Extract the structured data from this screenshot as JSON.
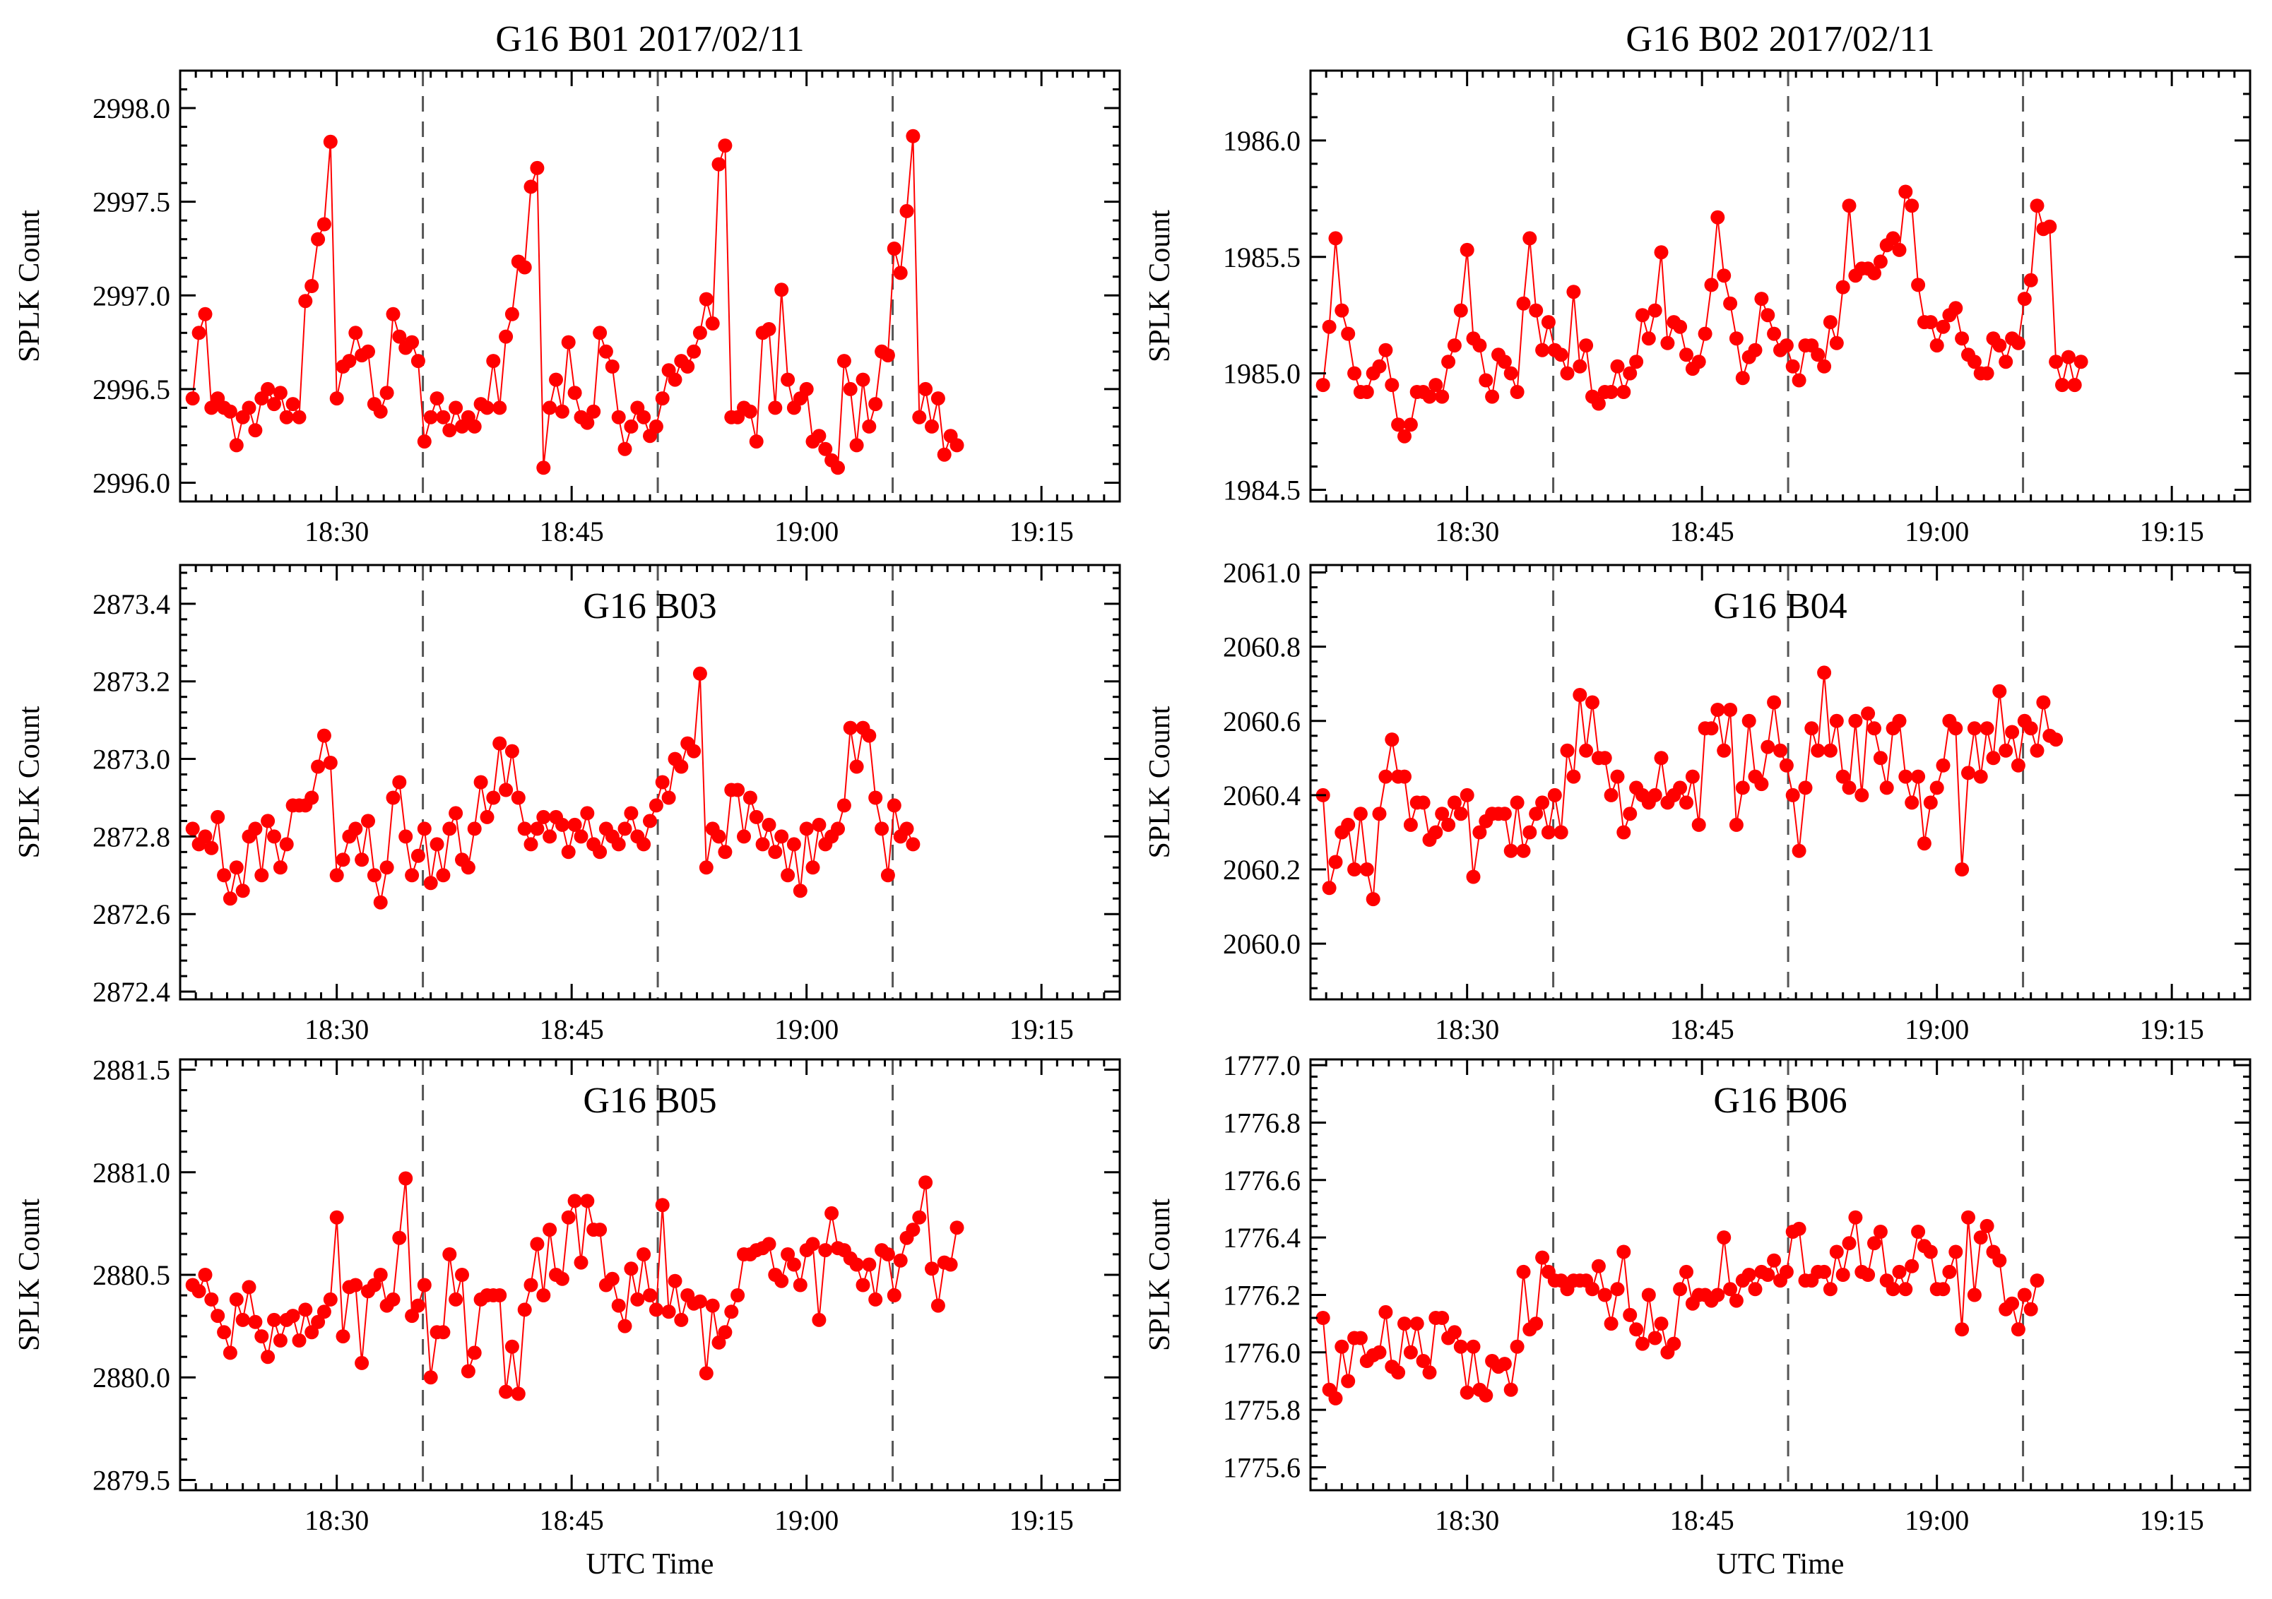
{
  "figure": {
    "series_color": "#ff0000",
    "marker_color": "#ff0000",
    "vline_color": "#555555",
    "xticks": [
      {
        "t": 30,
        "label": "18:30"
      },
      {
        "t": 45,
        "label": "18:45"
      },
      {
        "t": 60,
        "label": "19:00"
      },
      {
        "t": 75,
        "label": "19:15"
      }
    ],
    "xrange_minutes_after_18h": [
      20,
      80
    ],
    "vlines_minutes_after_18h": [
      35.5,
      50.5,
      65.5
    ],
    "time_offsets_minutes": [
      0.0,
      0.4,
      0.8,
      1.2,
      1.6,
      2.0,
      2.4,
      2.8,
      3.2,
      3.6,
      4.0,
      4.4,
      4.8,
      5.2,
      5.6,
      6.0,
      6.4,
      6.8,
      7.2,
      7.6,
      8.0,
      8.4,
      8.8,
      9.2,
      9.6,
      10.0,
      10.4,
      10.8,
      11.2,
      11.6,
      12.0,
      12.4,
      12.8,
      13.2,
      13.6,
      14.0,
      14.4,
      14.8,
      15.2,
      15.6,
      16.0,
      16.4,
      16.8,
      17.2,
      17.6,
      18.0,
      18.4,
      18.8,
      19.2,
      19.6,
      20.0,
      20.4,
      20.8,
      21.2,
      21.6,
      22.0,
      22.4,
      22.8,
      23.2,
      23.6,
      24.0,
      24.4,
      24.8,
      25.2,
      25.6,
      26.0,
      26.4,
      26.8,
      27.2,
      27.6,
      28.0,
      28.4,
      28.8,
      29.2,
      29.6,
      30.0,
      30.4,
      30.8,
      31.2,
      31.6,
      32.0,
      32.4,
      32.8,
      33.2,
      33.6,
      34.0,
      34.4,
      34.8,
      35.2,
      35.6,
      36.0,
      36.4,
      36.8,
      37.2,
      37.6,
      38.0,
      38.4,
      38.8,
      39.2,
      39.6,
      40.0,
      40.4,
      40.8,
      41.2,
      41.6,
      42.0,
      42.4,
      42.8,
      43.2,
      43.6,
      44.0,
      44.4,
      44.8,
      45.2,
      45.6,
      46.0,
      46.4,
      46.8,
      47.2,
      47.6,
      48.0,
      48.4,
      48.8,
      49.2,
      49.6,
      50.0,
      50.4,
      50.8,
      51.2,
      51.6,
      52.0,
      52.4,
      52.8,
      53.2,
      53.6,
      54.0,
      54.4,
      54.8,
      55.2,
      55.6,
      56.0,
      56.4,
      56.8,
      57.2,
      57.6,
      58.0,
      58.4,
      58.8,
      59.2,
      59.6,
      60.0
    ]
  },
  "chart_data": [
    {
      "type": "line",
      "title": "G16 B01 2017/02/11",
      "xlabel": "",
      "ylabel": "SPLK Count",
      "ylim": [
        2995.9,
        2998.2
      ],
      "yticks": [
        "2996.0",
        "2996.5",
        "2997.0",
        "2997.5",
        "2998.0"
      ],
      "values": [
        2996.45,
        2996.8,
        2996.9,
        2996.4,
        2996.45,
        2996.4,
        2996.38,
        2996.2,
        2996.35,
        2996.4,
        2996.28,
        2996.45,
        2996.5,
        2996.42,
        2996.48,
        2996.35,
        2996.42,
        2996.35,
        2996.97,
        2997.05,
        2997.3,
        2997.38,
        2997.82,
        2996.45,
        2996.62,
        2996.65,
        2996.8,
        2996.68,
        2996.7,
        2996.42,
        2996.38,
        2996.48,
        2996.9,
        2996.78,
        2996.72,
        2996.75,
        2996.65,
        2996.22,
        2996.35,
        2996.45,
        2996.35,
        2996.28,
        2996.4,
        2996.3,
        2996.35,
        2996.3,
        2996.42,
        2996.4,
        2996.65,
        2996.4,
        2996.78,
        2996.9,
        2997.18,
        2997.15,
        2997.58,
        2997.68,
        2996.08,
        2996.4,
        2996.55,
        2996.38,
        2996.75,
        2996.48,
        2996.35,
        2996.32,
        2996.38,
        2996.8,
        2996.7,
        2996.62,
        2996.35,
        2996.18,
        2996.3,
        2996.4,
        2996.35,
        2996.25,
        2996.3,
        2996.45,
        2996.6,
        2996.55,
        2996.65,
        2996.62,
        2996.7,
        2996.8,
        2996.98,
        2996.85,
        2997.7,
        2997.8,
        2996.35,
        2996.35,
        2996.4,
        2996.38,
        2996.22,
        2996.8,
        2996.82,
        2996.4,
        2997.03,
        2996.55,
        2996.4,
        2996.45,
        2996.5,
        2996.22,
        2996.25,
        2996.18,
        2996.12,
        2996.08,
        2996.65,
        2996.5,
        2996.2,
        2996.55,
        2996.3,
        2996.42,
        2996.7,
        2996.68,
        2997.25,
        2997.12,
        2997.45,
        2997.85,
        2996.35,
        2996.5,
        2996.3,
        2996.45,
        2996.15,
        2996.25,
        2996.2
      ]
    },
    {
      "type": "line",
      "title": "G16 B02 2017/02/11",
      "xlabel": "",
      "ylabel": "SPLK Count",
      "ylim": [
        1984.45,
        1986.3
      ],
      "yticks": [
        "1984.5",
        "1985.0",
        "1985.5",
        "1986.0"
      ],
      "values": [
        1984.95,
        1985.2,
        1985.58,
        1985.27,
        1985.17,
        1985.0,
        1984.92,
        1984.92,
        1985.0,
        1985.03,
        1985.1,
        1984.95,
        1984.78,
        1984.73,
        1984.78,
        1984.92,
        1984.92,
        1984.9,
        1984.95,
        1984.9,
        1985.05,
        1985.12,
        1985.27,
        1985.53,
        1985.15,
        1985.12,
        1984.97,
        1984.9,
        1985.08,
        1985.05,
        1985.0,
        1984.92,
        1985.3,
        1985.58,
        1985.27,
        1985.1,
        1985.22,
        1985.1,
        1985.08,
        1985.0,
        1985.35,
        1985.03,
        1985.12,
        1984.9,
        1984.87,
        1984.92,
        1984.92,
        1985.03,
        1984.92,
        1985.0,
        1985.05,
        1985.25,
        1985.15,
        1985.27,
        1985.52,
        1985.13,
        1985.22,
        1985.2,
        1985.08,
        1985.02,
        1985.05,
        1985.17,
        1985.38,
        1985.67,
        1985.42,
        1985.3,
        1985.15,
        1984.98,
        1985.07,
        1985.1,
        1985.32,
        1985.25,
        1985.17,
        1985.1,
        1985.12,
        1985.03,
        1984.97,
        1985.12,
        1985.12,
        1985.08,
        1985.03,
        1985.22,
        1985.13,
        1985.37,
        1985.72,
        1985.42,
        1985.45,
        1985.45,
        1985.43,
        1985.48,
        1985.55,
        1985.58,
        1985.53,
        1985.78,
        1985.72,
        1985.38,
        1985.22,
        1985.22,
        1985.12,
        1985.2,
        1985.25,
        1985.28,
        1985.15,
        1985.08,
        1985.05,
        1985.0,
        1985.0,
        1985.15,
        1985.12,
        1985.05,
        1985.15,
        1985.13,
        1985.32,
        1985.4,
        1985.72,
        1985.62,
        1985.63,
        1985.05,
        1984.95,
        1985.07,
        1984.95,
        1985.05
      ]
    },
    {
      "type": "line",
      "title": "G16 B03",
      "xlabel": "",
      "ylabel": "SPLK Count",
      "ylim": [
        2872.38,
        2873.5
      ],
      "yticks": [
        "2872.4",
        "2872.6",
        "2872.8",
        "2873.0",
        "2873.2",
        "2873.4"
      ],
      "values": [
        2872.82,
        2872.78,
        2872.8,
        2872.77,
        2872.85,
        2872.7,
        2872.64,
        2872.72,
        2872.66,
        2872.8,
        2872.82,
        2872.7,
        2872.84,
        2872.8,
        2872.72,
        2872.78,
        2872.88,
        2872.88,
        2872.88,
        2872.9,
        2872.98,
        2873.06,
        2872.99,
        2872.7,
        2872.74,
        2872.8,
        2872.82,
        2872.74,
        2872.84,
        2872.7,
        2872.63,
        2872.72,
        2872.9,
        2872.94,
        2872.8,
        2872.7,
        2872.75,
        2872.82,
        2872.68,
        2872.78,
        2872.7,
        2872.82,
        2872.86,
        2872.74,
        2872.72,
        2872.82,
        2872.94,
        2872.85,
        2872.9,
        2873.04,
        2872.92,
        2873.02,
        2872.9,
        2872.82,
        2872.78,
        2872.82,
        2872.85,
        2872.8,
        2872.85,
        2872.83,
        2872.76,
        2872.83,
        2872.8,
        2872.86,
        2872.78,
        2872.76,
        2872.82,
        2872.8,
        2872.78,
        2872.82,
        2872.86,
        2872.8,
        2872.78,
        2872.84,
        2872.88,
        2872.94,
        2872.9,
        2873.0,
        2872.98,
        2873.04,
        2873.02,
        2873.22,
        2872.72,
        2872.82,
        2872.8,
        2872.76,
        2872.92,
        2872.92,
        2872.8,
        2872.9,
        2872.85,
        2872.78,
        2872.83,
        2872.76,
        2872.8,
        2872.7,
        2872.78,
        2872.66,
        2872.82,
        2872.72,
        2872.83,
        2872.78,
        2872.8,
        2872.82,
        2872.88,
        2873.08,
        2872.98,
        2873.08,
        2873.06,
        2872.9,
        2872.82,
        2872.7,
        2872.88,
        2872.8,
        2872.82,
        2872.78
      ]
    },
    {
      "type": "line",
      "title": "G16 B04",
      "xlabel": "",
      "ylabel": "SPLK Count",
      "ylim": [
        2059.85,
        2061.02
      ],
      "yticks": [
        "2060.0",
        "2060.2",
        "2060.4",
        "2060.6",
        "2060.8",
        "2061.0"
      ],
      "values": [
        2060.4,
        2060.15,
        2060.22,
        2060.3,
        2060.32,
        2060.2,
        2060.35,
        2060.2,
        2060.12,
        2060.35,
        2060.45,
        2060.55,
        2060.45,
        2060.45,
        2060.32,
        2060.38,
        2060.38,
        2060.28,
        2060.3,
        2060.35,
        2060.32,
        2060.38,
        2060.35,
        2060.4,
        2060.18,
        2060.3,
        2060.33,
        2060.35,
        2060.35,
        2060.35,
        2060.25,
        2060.38,
        2060.25,
        2060.3,
        2060.35,
        2060.38,
        2060.3,
        2060.4,
        2060.3,
        2060.52,
        2060.45,
        2060.67,
        2060.52,
        2060.65,
        2060.5,
        2060.5,
        2060.4,
        2060.45,
        2060.3,
        2060.35,
        2060.42,
        2060.4,
        2060.38,
        2060.4,
        2060.5,
        2060.38,
        2060.4,
        2060.42,
        2060.38,
        2060.45,
        2060.32,
        2060.58,
        2060.58,
        2060.63,
        2060.52,
        2060.63,
        2060.32,
        2060.42,
        2060.6,
        2060.45,
        2060.43,
        2060.53,
        2060.65,
        2060.52,
        2060.48,
        2060.4,
        2060.25,
        2060.42,
        2060.58,
        2060.52,
        2060.73,
        2060.52,
        2060.6,
        2060.45,
        2060.42,
        2060.6,
        2060.4,
        2060.62,
        2060.58,
        2060.5,
        2060.42,
        2060.58,
        2060.6,
        2060.45,
        2060.38,
        2060.45,
        2060.27,
        2060.38,
        2060.42,
        2060.48,
        2060.6,
        2060.58,
        2060.2,
        2060.46,
        2060.58,
        2060.45,
        2060.58,
        2060.5,
        2060.68,
        2060.52,
        2060.57,
        2060.48,
        2060.6,
        2060.58,
        2060.52,
        2060.65,
        2060.56,
        2060.55
      ]
    },
    {
      "type": "line",
      "title": "G16 B05",
      "xlabel": "UTC Time",
      "ylabel": "SPLK Count",
      "ylim": [
        2879.45,
        2881.55
      ],
      "yticks": [
        "2879.5",
        "2880.0",
        "2880.5",
        "2881.0",
        "2881.5"
      ],
      "values": [
        2880.45,
        2880.42,
        2880.5,
        2880.38,
        2880.3,
        2880.22,
        2880.12,
        2880.38,
        2880.28,
        2880.44,
        2880.27,
        2880.2,
        2880.1,
        2880.28,
        2880.18,
        2880.28,
        2880.3,
        2880.18,
        2880.33,
        2880.22,
        2880.27,
        2880.32,
        2880.38,
        2880.78,
        2880.2,
        2880.44,
        2880.45,
        2880.07,
        2880.42,
        2880.45,
        2880.5,
        2880.35,
        2880.38,
        2880.68,
        2880.97,
        2880.3,
        2880.35,
        2880.45,
        2880.0,
        2880.22,
        2880.22,
        2880.6,
        2880.38,
        2880.5,
        2880.03,
        2880.12,
        2880.38,
        2880.4,
        2880.4,
        2880.4,
        2879.93,
        2880.15,
        2879.92,
        2880.33,
        2880.45,
        2880.65,
        2880.4,
        2880.72,
        2880.5,
        2880.48,
        2880.78,
        2880.86,
        2880.56,
        2880.86,
        2880.72,
        2880.72,
        2880.45,
        2880.48,
        2880.35,
        2880.25,
        2880.53,
        2880.38,
        2880.6,
        2880.4,
        2880.33,
        2880.84,
        2880.32,
        2880.47,
        2880.28,
        2880.4,
        2880.36,
        2880.37,
        2880.02,
        2880.35,
        2880.17,
        2880.22,
        2880.32,
        2880.4,
        2880.6,
        2880.6,
        2880.62,
        2880.63,
        2880.65,
        2880.5,
        2880.47,
        2880.6,
        2880.55,
        2880.45,
        2880.62,
        2880.65,
        2880.28,
        2880.62,
        2880.8,
        2880.63,
        2880.62,
        2880.58,
        2880.55,
        2880.45,
        2880.55,
        2880.38,
        2880.62,
        2880.6,
        2880.4,
        2880.57,
        2880.68,
        2880.72,
        2880.78,
        2880.95,
        2880.53,
        2880.35,
        2880.56,
        2880.55,
        2880.73
      ]
    },
    {
      "type": "line",
      "title": "G16 B06",
      "xlabel": "UTC Time",
      "ylabel": "SPLK Count",
      "ylim": [
        1775.52,
        1777.02
      ],
      "yticks": [
        "1775.6",
        "1775.8",
        "1776.0",
        "1776.2",
        "1776.4",
        "1776.6",
        "1776.8",
        "1777.0"
      ],
      "values": [
        1776.12,
        1775.87,
        1775.84,
        1776.02,
        1775.9,
        1776.05,
        1776.05,
        1775.97,
        1775.99,
        1776.0,
        1776.14,
        1775.95,
        1775.93,
        1776.1,
        1776.0,
        1776.1,
        1775.97,
        1775.93,
        1776.12,
        1776.12,
        1776.05,
        1776.07,
        1776.02,
        1775.86,
        1776.02,
        1775.87,
        1775.85,
        1775.97,
        1775.95,
        1775.96,
        1775.87,
        1776.02,
        1776.28,
        1776.08,
        1776.1,
        1776.33,
        1776.28,
        1776.25,
        1776.25,
        1776.22,
        1776.25,
        1776.25,
        1776.25,
        1776.22,
        1776.3,
        1776.2,
        1776.1,
        1776.22,
        1776.35,
        1776.13,
        1776.08,
        1776.03,
        1776.2,
        1776.05,
        1776.1,
        1776.0,
        1776.03,
        1776.22,
        1776.28,
        1776.17,
        1776.2,
        1776.2,
        1776.18,
        1776.2,
        1776.4,
        1776.22,
        1776.18,
        1776.25,
        1776.27,
        1776.22,
        1776.28,
        1776.27,
        1776.32,
        1776.25,
        1776.28,
        1776.42,
        1776.43,
        1776.25,
        1776.25,
        1776.28,
        1776.28,
        1776.22,
        1776.35,
        1776.27,
        1776.38,
        1776.47,
        1776.28,
        1776.27,
        1776.38,
        1776.42,
        1776.25,
        1776.22,
        1776.28,
        1776.22,
        1776.3,
        1776.42,
        1776.37,
        1776.35,
        1776.22,
        1776.22,
        1776.28,
        1776.35,
        1776.08,
        1776.47,
        1776.2,
        1776.4,
        1776.44,
        1776.35,
        1776.32,
        1776.15,
        1776.17,
        1776.08,
        1776.2,
        1776.15,
        1776.25
      ]
    }
  ]
}
